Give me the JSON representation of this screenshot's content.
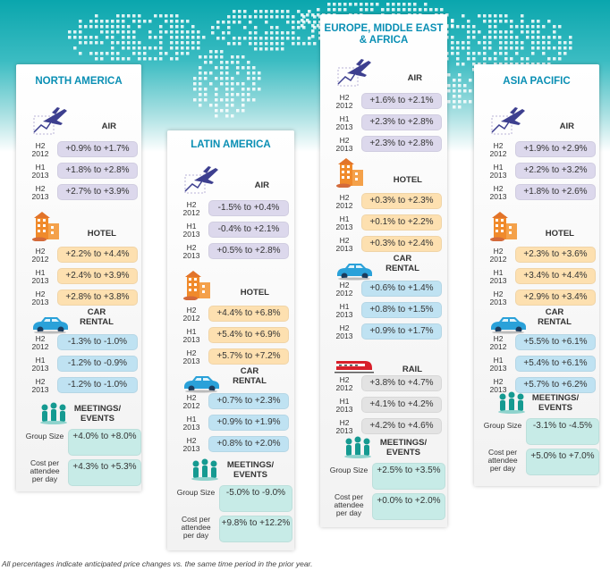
{
  "footnote": "All percentages indicate anticipated price changes vs. the same time period in the prior year.",
  "colors": {
    "air": "#dcd8ec",
    "hotel": "#fde0b0",
    "car": "#bfe2f2",
    "rail": "#e3e3e3",
    "meetings": "#c7ebe7",
    "region_title": "#0a8fb4"
  },
  "regions": [
    {
      "name": "NORTH AMERICA",
      "air": {
        "label": "AIR",
        "rows": [
          [
            "H2 2012",
            "+0.9% to +1.7%"
          ],
          [
            "H1 2013",
            "+1.8% to +2.8%"
          ],
          [
            "H2 2013",
            "+2.7% to +3.9%"
          ]
        ]
      },
      "hotel": {
        "label": "HOTEL",
        "rows": [
          [
            "H2 2012",
            "+2.2% to +4.4%"
          ],
          [
            "H1 2013",
            "+2.4% to +3.9%"
          ],
          [
            "H2 2013",
            "+2.8% to +3.8%"
          ]
        ]
      },
      "car": {
        "label": "CAR RENTAL",
        "rows": [
          [
            "H2 2012",
            "-1.3% to -1.0%"
          ],
          [
            "H1 2013",
            "-1.2% to -0.9%"
          ],
          [
            "H2 2013",
            "-1.2% to -1.0%"
          ]
        ]
      },
      "meetings": {
        "label": "MEETINGS/ EVENTS",
        "group_label": "Group Size",
        "group": "+4.0% to +8.0%",
        "cost_label": "Cost per attendee per day",
        "cost": "+4.3% to +5.3%"
      }
    },
    {
      "name": "LATIN AMERICA",
      "air": {
        "label": "AIR",
        "rows": [
          [
            "H2 2012",
            "-1.5% to +0.4%"
          ],
          [
            "H1 2013",
            "-0.4% to +2.1%"
          ],
          [
            "H2 2013",
            "+0.5% to +2.8%"
          ]
        ]
      },
      "hotel": {
        "label": "HOTEL",
        "rows": [
          [
            "H2 2012",
            "+4.4% to +6.8%"
          ],
          [
            "H1 2013",
            "+5.4% to +6.9%"
          ],
          [
            "H2 2013",
            "+5.7% to +7.2%"
          ]
        ]
      },
      "car": {
        "label": "CAR RENTAL",
        "rows": [
          [
            "H2 2012",
            "+0.7% to +2.3%"
          ],
          [
            "H1 2013",
            "+0.9% to +1.9%"
          ],
          [
            "H2 2013",
            "+0.8% to +2.0%"
          ]
        ]
      },
      "meetings": {
        "label": "MEETINGS/ EVENTS",
        "group_label": "Group Size",
        "group": "-5.0% to -9.0%",
        "cost_label": "Cost per attendee per day",
        "cost": "+9.8% to +12.2%"
      }
    },
    {
      "name": "EUROPE, MIDDLE EAST & AFRICA",
      "air": {
        "label": "AIR",
        "rows": [
          [
            "H2 2012",
            "+1.6% to +2.1%"
          ],
          [
            "H1 2013",
            "+2.3% to +2.8%"
          ],
          [
            "H2 2013",
            "+2.3% to +2.8%"
          ]
        ]
      },
      "hotel": {
        "label": "HOTEL",
        "rows": [
          [
            "H2 2012",
            "+0.3% to +2.3%"
          ],
          [
            "H1 2013",
            "+0.1% to +2.2%"
          ],
          [
            "H2 2013",
            "+0.3% to +2.4%"
          ]
        ]
      },
      "car": {
        "label": "CAR RENTAL",
        "rows": [
          [
            "H2 2012",
            "+0.6% to +1.4%"
          ],
          [
            "H1 2013",
            "+0.8% to +1.5%"
          ],
          [
            "H2 2013",
            "+0.9% to +1.7%"
          ]
        ]
      },
      "rail": {
        "label": "RAIL",
        "rows": [
          [
            "H2 2012",
            "+3.8% to +4.7%"
          ],
          [
            "H1 2013",
            "+4.1% to +4.2%"
          ],
          [
            "H2 2013",
            "+4.2% to +4.6%"
          ]
        ]
      },
      "meetings": {
        "label": "MEETINGS/ EVENTS",
        "group_label": "Group Size",
        "group": "+2.5% to +3.5%",
        "cost_label": "Cost per attendee per day",
        "cost": "+0.0% to +2.0%"
      }
    },
    {
      "name": "ASIA PACIFIC",
      "air": {
        "label": "AIR",
        "rows": [
          [
            "H2 2012",
            "+1.9% to +2.9%"
          ],
          [
            "H1 2013",
            "+2.2% to +3.2%"
          ],
          [
            "H2 2013",
            "+1.8% to +2.6%"
          ]
        ]
      },
      "hotel": {
        "label": "HOTEL",
        "rows": [
          [
            "H2 2012",
            "+2.3% to +3.6%"
          ],
          [
            "H1 2013",
            "+3.4% to +4.4%"
          ],
          [
            "H2 2013",
            "+2.9% to +3.4%"
          ]
        ]
      },
      "car": {
        "label": "CAR RENTAL",
        "rows": [
          [
            "H2 2012",
            "+5.5% to +6.1%"
          ],
          [
            "H1 2013",
            "+5.4% to +6.1%"
          ],
          [
            "H2 2013",
            "+5.7% to +6.2%"
          ]
        ]
      },
      "meetings": {
        "label": "MEETINGS/ EVENTS",
        "group_label": "Group Size",
        "group": "-3.1% to -4.5%",
        "cost_label": "Cost per attendee per day",
        "cost": "+5.0% to +7.0%"
      }
    }
  ]
}
